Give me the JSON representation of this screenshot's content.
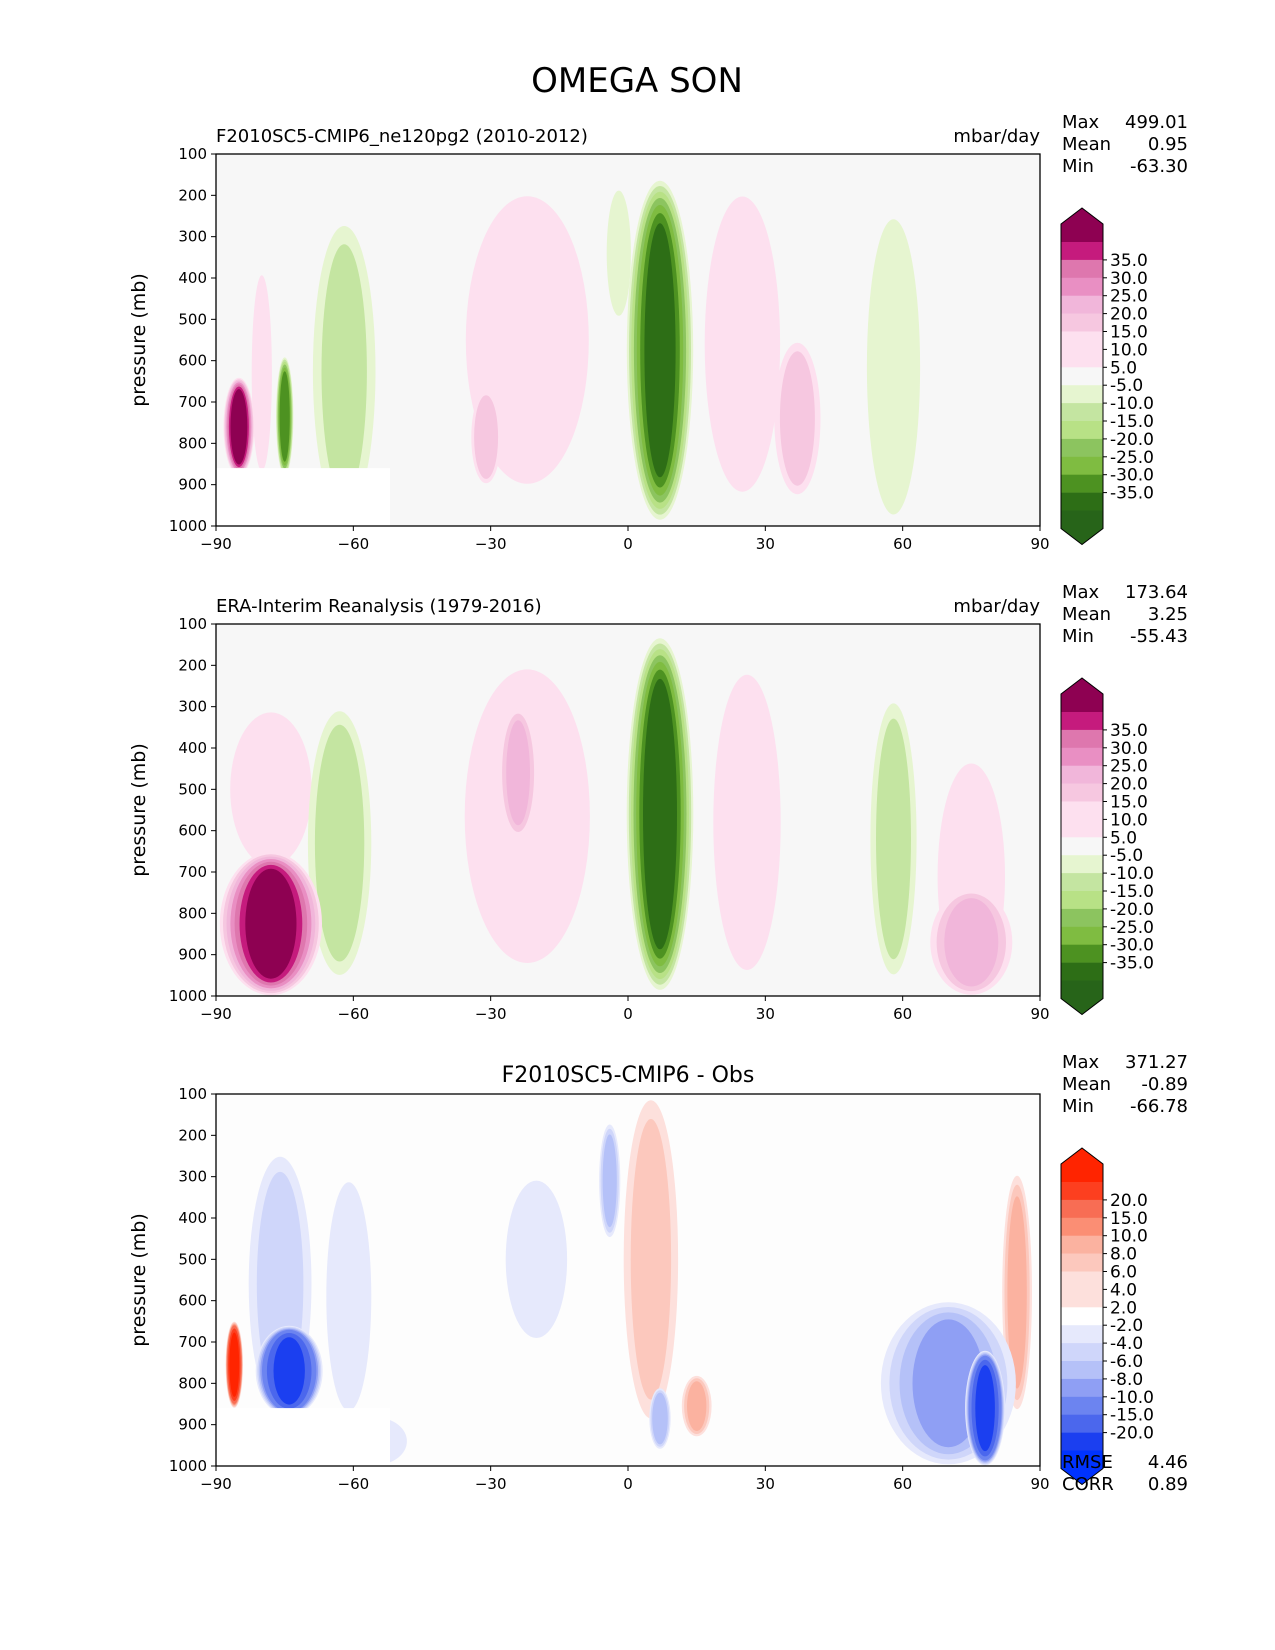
{
  "title": "OMEGA SON",
  "colors": {
    "pos": [
      "#f7f7f7",
      "#fde0ef",
      "#f6c7e0",
      "#f1b6da",
      "#e98fc3",
      "#de77ae",
      "#c51b7d",
      "#8e0152"
    ],
    "neg": [
      "#f7f7f7",
      "#e6f5d0",
      "#c4e5a1",
      "#b8e186",
      "#8cc45f",
      "#7fbc41",
      "#4d9221",
      "#2d6e16",
      "#276419"
    ],
    "diffPos": [
      "#fdfdfd",
      "#fde0dc",
      "#fcc8bd",
      "#fbb2a0",
      "#fb8e74",
      "#f86d54",
      "#fd3f1f",
      "#ff2400"
    ],
    "diffNeg": [
      "#fdfdfd",
      "#e6e9fc",
      "#cfd6fa",
      "#b5c1f8",
      "#8f9ff4",
      "#6c84f0",
      "#4b67ed",
      "#1b3ff0",
      "#0033ff"
    ],
    "mask": "#ffffff"
  },
  "chart_data": [
    {
      "type": "heatmap",
      "title_left": "F2010SC5-CMIP6_ne120pg2 (2010-2012)",
      "title_right": "mbar/day",
      "title_center": "",
      "xlabel": "",
      "ylabel": "pressure (mb)",
      "xlim": [
        -90,
        90
      ],
      "ylim": [
        1000,
        100
      ],
      "xticks": [
        "−90",
        "−60",
        "−30",
        "0",
        "30",
        "60",
        "90"
      ],
      "yticks": [
        "100",
        "200",
        "300",
        "400",
        "500",
        "600",
        "700",
        "800",
        "900",
        "1000"
      ],
      "stats": [
        {
          "label": "Max",
          "value": "499.01"
        },
        {
          "label": "Mean",
          "value": "0.95"
        },
        {
          "label": "Min",
          "value": "-63.30"
        }
      ],
      "extra_stats": [],
      "colorbar_labels": [
        "35.0",
        "30.0",
        "25.0",
        "20.0",
        "15.0",
        "10.0",
        "5.0",
        "-5.0",
        "-10.0",
        "-15.0",
        "-20.0",
        "-25.0",
        "-30.0",
        "-35.0"
      ],
      "palette": "model",
      "masked": {
        "lon_max": -52,
        "p_min": 860
      },
      "features": [
        {
          "lon": 7,
          "p_top": 160,
          "p_bot": 990,
          "width": 14,
          "value": -38
        },
        {
          "lon": -2,
          "p_top": 180,
          "p_bot": 500,
          "width": 5,
          "value": -8
        },
        {
          "lon": -22,
          "p_top": 180,
          "p_bot": 920,
          "width": 30,
          "value": 7
        },
        {
          "lon": -31,
          "p_top": 670,
          "p_bot": 900,
          "width": 6,
          "value": 14
        },
        {
          "lon": 25,
          "p_top": 180,
          "p_bot": 940,
          "width": 18,
          "value": 7
        },
        {
          "lon": 37,
          "p_top": 550,
          "p_bot": 930,
          "width": 10,
          "value": 12
        },
        {
          "lon": -62,
          "p_top": 260,
          "p_bot": 990,
          "width": 14,
          "value": -11
        },
        {
          "lon": 58,
          "p_top": 240,
          "p_bot": 990,
          "width": 12,
          "value": -9
        },
        {
          "lon": -85,
          "p_top": 640,
          "p_bot": 880,
          "width": 6,
          "value": 40
        },
        {
          "lon": -75,
          "p_top": 590,
          "p_bot": 880,
          "width": 3,
          "value": -33
        },
        {
          "lon": -80,
          "p_top": 380,
          "p_bot": 880,
          "width": 4,
          "value": 8
        }
      ]
    },
    {
      "type": "heatmap",
      "title_left": "ERA-Interim Reanalysis (1979-2016)",
      "title_right": "mbar/day",
      "title_center": "",
      "xlabel": "",
      "ylabel": "pressure (mb)",
      "xlim": [
        -90,
        90
      ],
      "ylim": [
        1000,
        100
      ],
      "xticks": [
        "−90",
        "−60",
        "−30",
        "0",
        "30",
        "60",
        "90"
      ],
      "yticks": [
        "100",
        "200",
        "300",
        "400",
        "500",
        "600",
        "700",
        "800",
        "900",
        "1000"
      ],
      "stats": [
        {
          "label": "Max",
          "value": "173.64"
        },
        {
          "label": "Mean",
          "value": "3.25"
        },
        {
          "label": "Min",
          "value": "-55.43"
        }
      ],
      "extra_stats": [],
      "colorbar_labels": [
        "35.0",
        "30.0",
        "25.0",
        "20.0",
        "15.0",
        "10.0",
        "5.0",
        "-5.0",
        "-10.0",
        "-15.0",
        "-20.0",
        "-25.0",
        "-30.0",
        "-35.0"
      ],
      "palette": "model",
      "masked": null,
      "features": [
        {
          "lon": 7,
          "p_top": 130,
          "p_bot": 990,
          "width": 14,
          "value": -40
        },
        {
          "lon": -22,
          "p_top": 190,
          "p_bot": 940,
          "width": 30,
          "value": 8
        },
        {
          "lon": -24,
          "p_top": 300,
          "p_bot": 620,
          "width": 8,
          "value": 16
        },
        {
          "lon": 26,
          "p_top": 200,
          "p_bot": 960,
          "width": 16,
          "value": 7
        },
        {
          "lon": -78,
          "p_top": 650,
          "p_bot": 1000,
          "width": 22,
          "value": 40
        },
        {
          "lon": -78,
          "p_top": 300,
          "p_bot": 700,
          "width": 20,
          "value": 6
        },
        {
          "lon": -63,
          "p_top": 300,
          "p_bot": 960,
          "width": 14,
          "value": -13
        },
        {
          "lon": 58,
          "p_top": 280,
          "p_bot": 960,
          "width": 10,
          "value": -12
        },
        {
          "lon": 75,
          "p_top": 740,
          "p_bot": 1000,
          "width": 18,
          "value": 18
        },
        {
          "lon": 75,
          "p_top": 420,
          "p_bot": 1000,
          "width": 16,
          "value": 7
        }
      ]
    },
    {
      "type": "heatmap",
      "title_left": "",
      "title_right": "",
      "title_center": "F2010SC5-CMIP6 - Obs",
      "xlabel": "",
      "ylabel": "pressure (mb)",
      "xlim": [
        -90,
        90
      ],
      "ylim": [
        1000,
        100
      ],
      "xticks": [
        "−90",
        "−60",
        "−30",
        "0",
        "30",
        "60",
        "90"
      ],
      "yticks": [
        "100",
        "200",
        "300",
        "400",
        "500",
        "600",
        "700",
        "800",
        "900",
        "1000"
      ],
      "stats": [
        {
          "label": "Max",
          "value": "371.27"
        },
        {
          "label": "Mean",
          "value": "-0.89"
        },
        {
          "label": "Min",
          "value": "-66.78"
        }
      ],
      "extra_stats": [
        {
          "label": "RMSE",
          "value": "4.46"
        },
        {
          "label": "CORR",
          "value": "0.89"
        }
      ],
      "colorbar_labels": [
        "20.0",
        "15.0",
        "10.0",
        "8.0",
        "6.0",
        "4.0",
        "2.0",
        "-2.0",
        "-4.0",
        "-6.0",
        "-8.0",
        "-10.0",
        "-15.0",
        "-20.0"
      ],
      "palette": "diff",
      "masked": {
        "lon_max": -52,
        "p_min": 860
      },
      "features": [
        {
          "lon": -74,
          "p_top": 660,
          "p_bot": 880,
          "width": 14,
          "value": -22
        },
        {
          "lon": -76,
          "p_top": 240,
          "p_bot": 880,
          "width": 14,
          "value": -4
        },
        {
          "lon": -86,
          "p_top": 650,
          "p_bot": 860,
          "width": 3,
          "value": 22
        },
        {
          "lon": -61,
          "p_top": 300,
          "p_bot": 880,
          "width": 10,
          "value": -3
        },
        {
          "lon": -20,
          "p_top": 300,
          "p_bot": 700,
          "width": 14,
          "value": -3
        },
        {
          "lon": 5,
          "p_top": 100,
          "p_bot": 900,
          "width": 12,
          "value": 4
        },
        {
          "lon": -4,
          "p_top": 170,
          "p_bot": 450,
          "width": 4,
          "value": -6
        },
        {
          "lon": 7,
          "p_top": 810,
          "p_bot": 960,
          "width": 4,
          "value": -7
        },
        {
          "lon": 15,
          "p_top": 780,
          "p_bot": 930,
          "width": 6,
          "value": 6
        },
        {
          "lon": 70,
          "p_top": 600,
          "p_bot": 1000,
          "width": 30,
          "value": -8
        },
        {
          "lon": 78,
          "p_top": 720,
          "p_bot": 1000,
          "width": 8,
          "value": -22
        },
        {
          "lon": 85,
          "p_top": 290,
          "p_bot": 870,
          "width": 6,
          "value": 6
        },
        {
          "lon": -55,
          "p_top": 880,
          "p_bot": 1000,
          "width": 14,
          "value": -3
        }
      ]
    }
  ]
}
